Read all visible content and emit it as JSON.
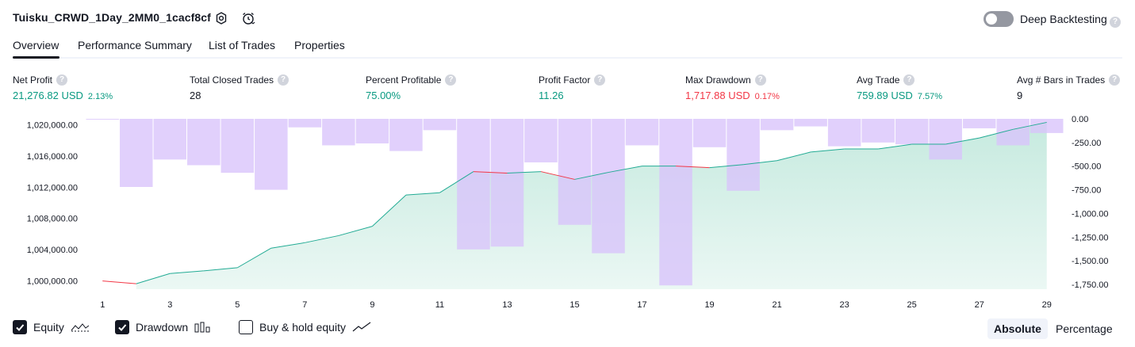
{
  "header": {
    "title": "Tuisku_CRWD_1Day_2MM0_1cacf8cf",
    "deep_backtesting_label": "Deep Backtesting",
    "deep_backtesting_enabled": false
  },
  "tabs": [
    {
      "label": "Overview",
      "active": true
    },
    {
      "label": "Performance Summary",
      "active": false
    },
    {
      "label": "List of Trades",
      "active": false
    },
    {
      "label": "Properties",
      "active": false
    }
  ],
  "metrics": [
    {
      "label": "Net Profit",
      "value": "21,276.82 USD",
      "pct": "2.13%",
      "color": "green"
    },
    {
      "label": "Total Closed Trades",
      "value": "28",
      "pct": "",
      "color": "dark"
    },
    {
      "label": "Percent Profitable",
      "value": "75.00%",
      "pct": "",
      "color": "green"
    },
    {
      "label": "Profit Factor",
      "value": "11.26",
      "pct": "",
      "color": "green"
    },
    {
      "label": "Max Drawdown",
      "value": "1,717.88 USD",
      "pct": "0.17%",
      "color": "red"
    },
    {
      "label": "Avg Trade",
      "value": "759.89 USD",
      "pct": "7.57%",
      "color": "green"
    },
    {
      "label": "Avg # Bars in Trades",
      "value": "9",
      "pct": "",
      "color": "dark"
    }
  ],
  "chart_data": {
    "type": "line",
    "x": [
      1,
      2,
      3,
      4,
      5,
      6,
      7,
      8,
      9,
      10,
      11,
      12,
      13,
      14,
      15,
      16,
      17,
      18,
      19,
      20,
      21,
      22,
      23,
      24,
      25,
      26,
      27,
      28,
      29
    ],
    "x_ticks": [
      "1",
      "3",
      "5",
      "7",
      "9",
      "11",
      "13",
      "15",
      "17",
      "19",
      "21",
      "23",
      "25",
      "27",
      "29"
    ],
    "y_left_ticks": [
      "1,020,000.00",
      "1,016,000.00",
      "1,012,000.00",
      "1,008,000.00",
      "1,004,000.00",
      "1,000,000.00"
    ],
    "y_right_ticks": [
      "0.00",
      "-250.00",
      "-500.00",
      "-750.00",
      "-1,000.00",
      "-1,250.00",
      "-1,500.00",
      "-1,750.00"
    ],
    "ylim_left": [
      998950,
      1020750
    ],
    "ylim_right": [
      -1800,
      0
    ],
    "series": [
      {
        "name": "Equity",
        "values": [
          1000000,
          999650,
          1000950,
          1001300,
          1001700,
          1004200,
          1004900,
          1005800,
          1007000,
          1011000,
          1011300,
          1014000,
          1013800,
          1014000,
          1013000,
          1013900,
          1014700,
          1014700,
          1014500,
          1014900,
          1015400,
          1016500,
          1016900,
          1016900,
          1017500,
          1017500,
          1018300,
          1019400,
          1020300
        ]
      },
      {
        "name": "Drawdown",
        "values": [
          0,
          -720,
          -430,
          -490,
          -570,
          -750,
          -90,
          -280,
          -260,
          -340,
          -120,
          -1380,
          -1350,
          -460,
          -1120,
          -1420,
          -280,
          -1760,
          -300,
          -760,
          -120,
          -80,
          -290,
          -250,
          -270,
          -430,
          -100,
          -280,
          -150
        ]
      }
    ],
    "colors": {
      "equity_up": "#22ab94",
      "equity_down": "#f23645",
      "equity_fill": "#c6eadf",
      "drawdown": "#d9c3fb"
    },
    "grid": false
  },
  "legend": {
    "equity_label": "Equity",
    "equity_checked": true,
    "drawdown_label": "Drawdown",
    "drawdown_checked": true,
    "buyhold_label": "Buy & hold equity",
    "buyhold_checked": false
  },
  "view_mode": {
    "absolute_label": "Absolute",
    "percentage_label": "Percentage",
    "active": "Absolute"
  },
  "icons": {
    "settings": "settings-icon",
    "alarm": "alarm-clock-icon",
    "help": "question-icon"
  }
}
